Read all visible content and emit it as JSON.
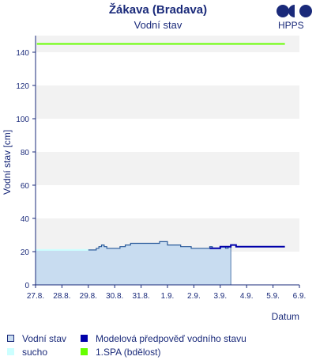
{
  "header": {
    "title": "Žákava (Bradava)",
    "subtitle": "Vodní stav",
    "logo_text": "HPPS"
  },
  "colors": {
    "axis": "#1a2a7a",
    "band": "#f2f2f2",
    "fill_water": "#c8dcf0",
    "line_water": "#2a5a9a",
    "forecast": "#0000aa",
    "spa1": "#66ff00",
    "sucho": "#ccffff"
  },
  "chart_data": {
    "type": "line",
    "ylabel": "Vodní stav [cm]",
    "xlabel": "Datum",
    "ylim": [
      0,
      150
    ],
    "yticks": [
      0,
      20,
      40,
      60,
      80,
      100,
      120,
      140
    ],
    "xlim": [
      0,
      10
    ],
    "xticks": [
      "27.8.",
      "28.8.",
      "29.8.",
      "30.8.",
      "31.8.",
      "1.9.",
      "2.9.",
      "3.9.",
      "4.9.",
      "5.9.",
      "6.9."
    ],
    "observed": {
      "name": "Vodní stav",
      "x": [
        0,
        2.0,
        2.3,
        2.4,
        2.5,
        2.6,
        2.7,
        3.0,
        3.2,
        3.4,
        3.6,
        4.0,
        4.5,
        4.7,
        5.0,
        5.5,
        5.9,
        6.2,
        6.5,
        6.6,
        6.7,
        6.8,
        7.0,
        7.2,
        7.3,
        7.4
      ],
      "y": [
        21,
        21,
        22,
        23,
        24,
        23,
        22,
        22,
        23,
        24,
        25,
        25,
        25,
        26,
        24,
        23,
        22,
        22,
        22,
        23,
        22,
        22,
        23,
        22,
        23,
        22
      ]
    },
    "forecast": {
      "name": "Modelová předpověď vodního stavu",
      "x": [
        6.6,
        6.8,
        7.0,
        7.2,
        7.4,
        7.6,
        7.8,
        8.0,
        9.0,
        9.45
      ],
      "y": [
        22,
        22,
        23,
        23,
        24,
        23,
        23,
        23,
        23,
        23
      ]
    },
    "spa1": {
      "name": "1.SPA (bdělost)",
      "value": 145,
      "x_from": 0.05,
      "x_to": 9.45
    },
    "sucho": {
      "name": "sucho",
      "value": 21
    }
  },
  "legend": [
    {
      "key": "vodni_stav",
      "label": "Vodní stav"
    },
    {
      "key": "forecast",
      "label": "Modelová předpověď vodního stavu"
    },
    {
      "key": "sucho",
      "label": "sucho"
    },
    {
      "key": "spa1",
      "label": "1.SPA (bdělost)"
    }
  ]
}
